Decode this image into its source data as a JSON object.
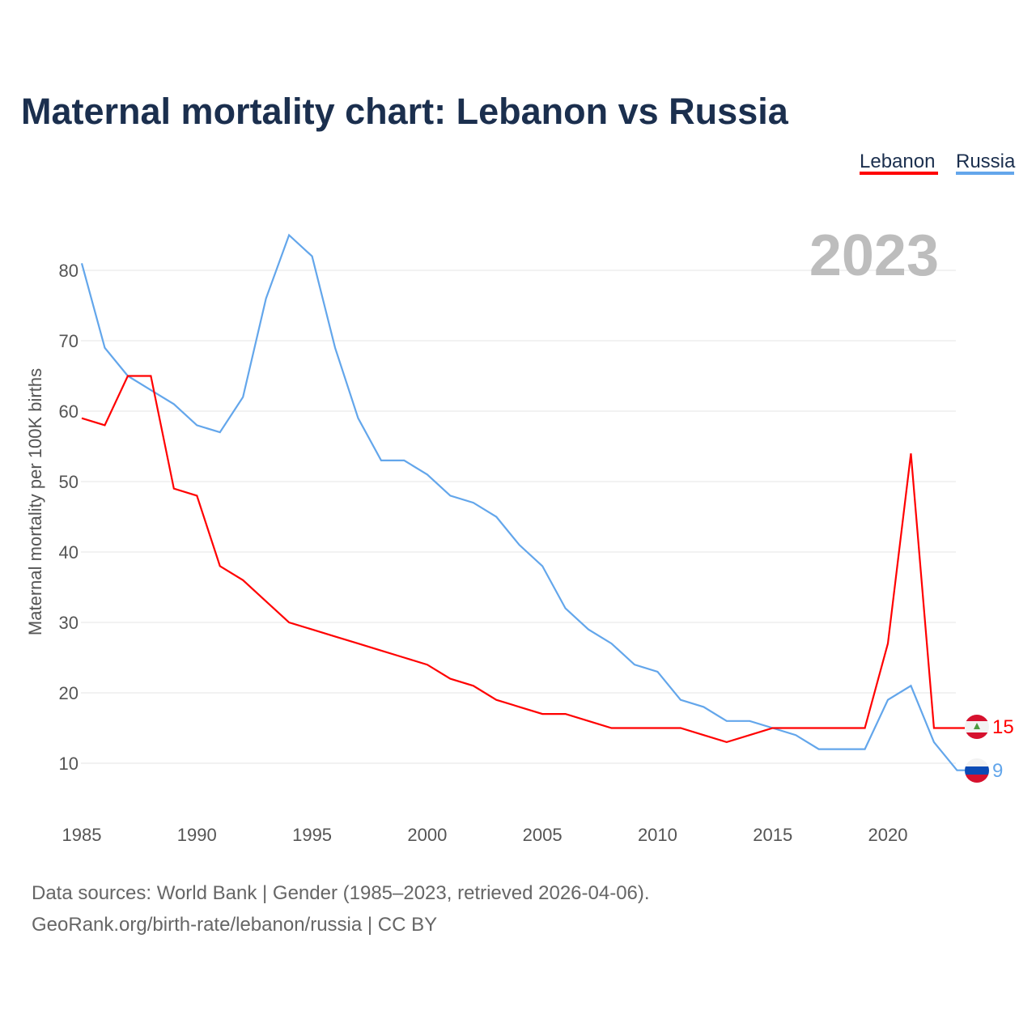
{
  "chart_data": {
    "type": "line",
    "title": "Maternal mortality chart: Lebanon vs Russia",
    "ylabel": "Maternal mortality per 100K births",
    "xlabel": "",
    "year_label": "2023",
    "xlim": [
      1985,
      2023
    ],
    "ylim": [
      5,
      88
    ],
    "x_ticks": [
      1985,
      1990,
      1995,
      2000,
      2005,
      2010,
      2015,
      2020
    ],
    "y_ticks": [
      10,
      20,
      30,
      40,
      50,
      60,
      70,
      80
    ],
    "grid": true,
    "legend_position": "top-right",
    "x": [
      1985,
      1986,
      1987,
      1988,
      1989,
      1990,
      1991,
      1992,
      1993,
      1994,
      1995,
      1996,
      1997,
      1998,
      1999,
      2000,
      2001,
      2002,
      2003,
      2004,
      2005,
      2006,
      2007,
      2008,
      2009,
      2010,
      2011,
      2012,
      2013,
      2014,
      2015,
      2016,
      2017,
      2018,
      2019,
      2020,
      2021,
      2022,
      2023
    ],
    "series": [
      {
        "name": "Lebanon",
        "color": "#ff0000",
        "end_label": "15",
        "values": [
          59,
          58,
          65,
          65,
          49,
          48,
          38,
          36,
          33,
          30,
          29,
          28,
          27,
          26,
          25,
          24,
          22,
          21,
          19,
          18,
          17,
          17,
          16,
          15,
          15,
          15,
          15,
          14,
          13,
          14,
          15,
          15,
          15,
          15,
          15,
          27,
          54,
          15,
          15
        ]
      },
      {
        "name": "Russia",
        "color": "#63a6eb",
        "end_label": "9",
        "values": [
          81,
          69,
          65,
          63,
          61,
          58,
          57,
          62,
          76,
          85,
          82,
          69,
          59,
          53,
          53,
          51,
          48,
          47,
          45,
          41,
          38,
          32,
          29,
          27,
          24,
          23,
          19,
          18,
          16,
          16,
          15,
          14,
          12,
          12,
          12,
          19,
          21,
          13,
          9
        ]
      }
    ]
  },
  "footer": {
    "line1": "Data sources: World Bank | Gender (1985–2023, retrieved 2026-04-06).",
    "line2": "GeoRank.org/birth-rate/lebanon/russia | CC BY"
  }
}
